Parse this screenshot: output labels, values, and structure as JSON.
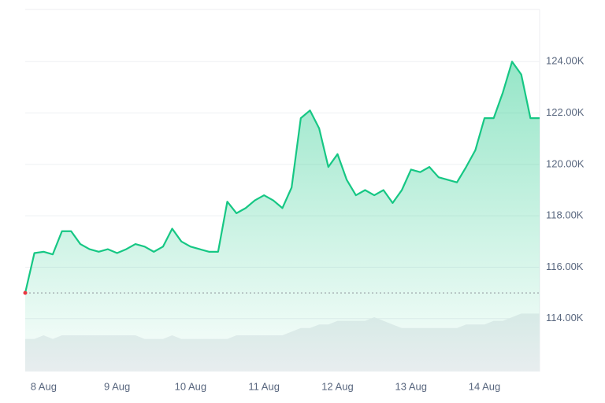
{
  "chart_data": {
    "type": "line",
    "categories": [
      null,
      null,
      "8 Aug",
      null,
      null,
      null,
      null,
      null,
      null,
      null,
      "9 Aug",
      null,
      null,
      null,
      null,
      null,
      null,
      null,
      "10 Aug",
      null,
      null,
      null,
      null,
      null,
      null,
      null,
      "11 Aug",
      null,
      null,
      null,
      null,
      null,
      null,
      null,
      "12 Aug",
      null,
      null,
      null,
      null,
      null,
      null,
      null,
      "13 Aug",
      null,
      null,
      null,
      null,
      null,
      null,
      null,
      "14 Aug",
      null,
      null,
      null,
      null,
      null,
      null
    ],
    "values": [
      115000,
      116550,
      116600,
      116500,
      117400,
      117400,
      116900,
      116700,
      116600,
      116700,
      116550,
      116700,
      116900,
      116800,
      116600,
      116800,
      117500,
      117000,
      116800,
      116700,
      116600,
      116600,
      118550,
      118100,
      118300,
      118600,
      118800,
      118600,
      118300,
      119100,
      121800,
      122100,
      121400,
      119900,
      120400,
      119400,
      118800,
      119000,
      118800,
      119000,
      118500,
      119000,
      119800,
      119700,
      119900,
      119500,
      119400,
      119300,
      119900,
      120550,
      121800,
      121800,
      122800,
      124000,
      123500,
      121800,
      121800
    ],
    "color": "#16c784",
    "baseline": 115000,
    "baseline_color": "#8a8f98",
    "start_color": "#ea3943",
    "volume": {
      "values": [
        9,
        9,
        10,
        9,
        10,
        10,
        10,
        10,
        10,
        10,
        10,
        10,
        10,
        9,
        9,
        9,
        10,
        9,
        9,
        9,
        9,
        9,
        9,
        10,
        10,
        10,
        10,
        10,
        10,
        11,
        12,
        12,
        13,
        13,
        14,
        14,
        14,
        14,
        15,
        14,
        13,
        12,
        12,
        12,
        12,
        12,
        12,
        12,
        13,
        13,
        13,
        14,
        14,
        15,
        16,
        16,
        16
      ],
      "color": "#eceef1",
      "axis": "y2"
    },
    "ylim": [
      111940,
      126030
    ],
    "yticks": [
      {
        "value": 114000,
        "label": "114.00K"
      },
      {
        "value": 116000,
        "label": "116.00K"
      },
      {
        "value": 118000,
        "label": "118.00K"
      },
      {
        "value": 120000,
        "label": "120.00K"
      },
      {
        "value": 122000,
        "label": "122.00K"
      },
      {
        "value": 124000,
        "label": "124.00K"
      }
    ],
    "y2lim": [
      0,
      100
    ],
    "grid": true
  }
}
